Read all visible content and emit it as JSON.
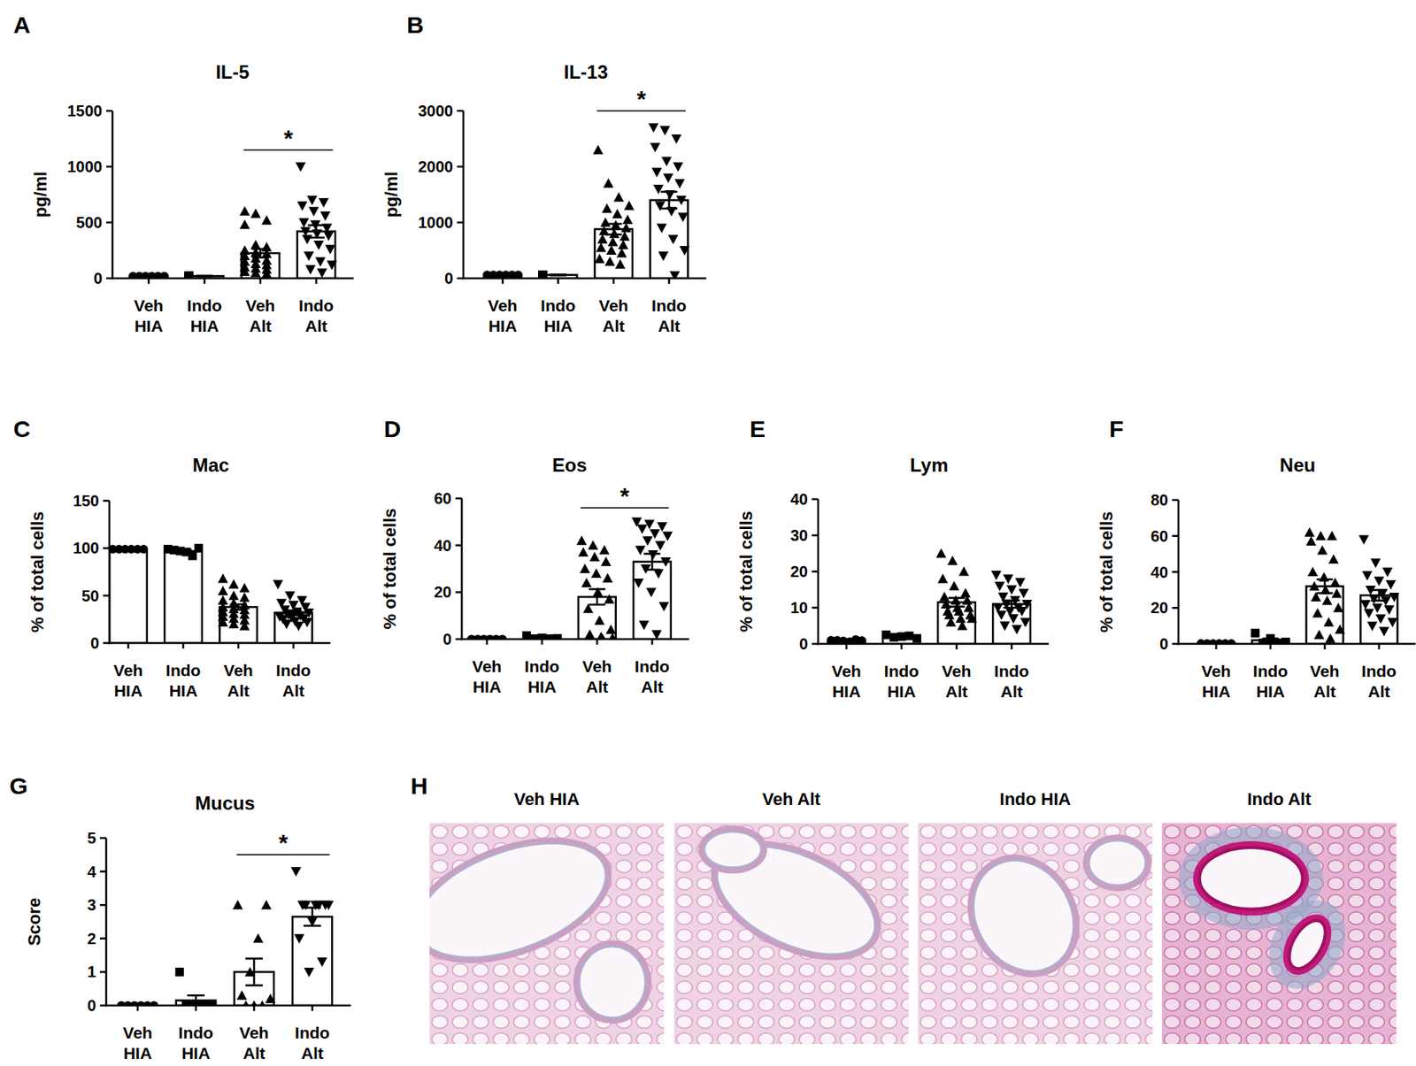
{
  "figure": {
    "panel_labels": [
      "A",
      "B",
      "C",
      "D",
      "E",
      "F",
      "G",
      "H"
    ],
    "image_titles": [
      "Veh HIA",
      "Veh Alt",
      "Indo HIA",
      "Indo Alt"
    ]
  },
  "chart_data": [
    {
      "type": "bar",
      "title": "IL-5",
      "ylabel": "pg/ml",
      "categories": [
        "Veh HIA",
        "Indo HIA",
        "Veh Alt",
        "Indo Alt"
      ],
      "ylim": [
        0,
        1500
      ],
      "yticks": [
        0,
        500,
        1000,
        1500
      ],
      "markers": [
        "circle",
        "square",
        "triangle-up",
        "triangle-down"
      ],
      "annotations": [
        {
          "text": "*",
          "between": [
            "Veh Alt",
            "Indo Alt"
          ]
        }
      ],
      "series": [
        {
          "color": "#ffffff",
          "values": [
            20,
            20,
            225,
            420
          ],
          "errors": [
            3,
            3,
            38,
            55
          ],
          "points": [
            [
              20,
              20,
              20,
              20,
              20,
              20
            ],
            [
              20,
              20,
              20,
              20,
              20,
              20,
              20
            ],
            [
              600,
              580,
              520,
              480,
              300,
              280,
              250,
              230,
              220,
              200,
              180,
              160,
              150,
              130,
              120,
              100,
              90,
              80,
              60,
              50,
              40
            ],
            [
              1000,
              700,
              680,
              650,
              600,
              560,
              500,
              480,
              450,
              420,
              400,
              380,
              350,
              300,
              260,
              200,
              150,
              120,
              80,
              50
            ]
          ]
        }
      ]
    },
    {
      "type": "bar",
      "title": "IL-13",
      "ylabel": "pg/ml",
      "categories": [
        "Veh HIA",
        "Indo HIA",
        "Veh Alt",
        "Indo Alt"
      ],
      "ylim": [
        0,
        3000
      ],
      "yticks": [
        0,
        1000,
        2000,
        3000
      ],
      "markers": [
        "circle",
        "square",
        "triangle-up",
        "triangle-down"
      ],
      "annotations": [
        {
          "text": "*",
          "between": [
            "Veh Alt",
            "Indo Alt"
          ]
        }
      ],
      "series": [
        {
          "color": "#ffffff",
          "values": [
            60,
            60,
            880,
            1400
          ],
          "errors": [
            8,
            8,
            95,
            150
          ],
          "points": [
            [
              60,
              60,
              60,
              60,
              60,
              60
            ],
            [
              60,
              60,
              60,
              60,
              60,
              60,
              60
            ],
            [
              2300,
              1700,
              1450,
              1300,
              1250,
              1150,
              1050,
              1000,
              950,
              900,
              850,
              800,
              750,
              700,
              650,
              600,
              550,
              500,
              450,
              350,
              300,
              250
            ],
            [
              2700,
              2650,
              2500,
              2350,
              2100,
              2000,
              1900,
              1800,
              1700,
              1600,
              1500,
              1400,
              1300,
              1200,
              1100,
              900,
              700,
              500,
              400,
              50
            ]
          ]
        }
      ]
    },
    {
      "type": "bar",
      "title": "Mac",
      "ylabel": "% of total cells",
      "categories": [
        "Veh HIA",
        "Indo HIA",
        "Veh Alt",
        "Indo Alt"
      ],
      "ylim": [
        0,
        150
      ],
      "yticks": [
        0,
        50,
        100,
        150
      ],
      "markers": [
        "circle",
        "square",
        "triangle-up",
        "triangle-down"
      ],
      "series": [
        {
          "color": "#ffffff",
          "values": [
            99,
            97,
            38,
            32
          ],
          "errors": [
            0.3,
            1.5,
            2.8,
            2.4
          ],
          "points": [
            [
              99,
              99,
              99,
              99,
              99,
              99
            ],
            [
              99,
              98,
              97,
              96,
              92,
              100
            ],
            [
              68,
              62,
              58,
              55,
              50,
              48,
              45,
              42,
              40,
              38,
              36,
              35,
              33,
              31,
              30,
              28,
              26,
              24,
              22,
              20,
              18
            ],
            [
              62,
              50,
              45,
              42,
              40,
              38,
              35,
              33,
              32,
              30,
              29,
              28,
              27,
              26,
              25,
              23,
              22,
              20,
              18
            ]
          ]
        }
      ]
    },
    {
      "type": "bar",
      "title": "Eos",
      "ylabel": "% of total cells",
      "categories": [
        "Veh HIA",
        "Indo HIA",
        "Veh Alt",
        "Indo Alt"
      ],
      "ylim": [
        0,
        60
      ],
      "yticks": [
        0,
        20,
        40,
        60
      ],
      "markers": [
        "circle",
        "square",
        "triangle-up",
        "triangle-down"
      ],
      "annotations": [
        {
          "text": "*",
          "between": [
            "Veh Alt",
            "Indo Alt"
          ]
        }
      ],
      "series": [
        {
          "color": "#ffffff",
          "values": [
            0,
            0.5,
            18,
            33
          ],
          "errors": [
            0,
            0.3,
            3.3,
            3.4
          ],
          "points": [
            [
              0,
              0,
              0,
              0,
              0,
              0
            ],
            [
              1.5,
              0.5,
              0.3,
              0.2,
              0.2
            ],
            [
              42,
              40,
              38,
              37,
              35,
              33,
              30,
              28,
              26,
              24,
              20,
              17,
              13,
              8,
              4,
              2,
              1,
              0.5,
              0,
              0
            ],
            [
              50,
              49,
              48,
              47,
              45,
              44,
              42,
              40,
              38,
              36,
              33,
              30,
              28,
              24,
              20,
              14,
              6,
              2
            ]
          ]
        }
      ]
    },
    {
      "type": "bar",
      "title": "Lym",
      "ylabel": "% of total cells",
      "categories": [
        "Veh HIA",
        "Indo HIA",
        "Veh Alt",
        "Indo Alt"
      ],
      "ylim": [
        0,
        40
      ],
      "yticks": [
        0,
        10,
        20,
        30,
        40
      ],
      "markers": [
        "circle",
        "square",
        "triangle-up",
        "triangle-down"
      ],
      "series": [
        {
          "color": "#ffffff",
          "values": [
            1,
            2,
            11.5,
            11
          ],
          "errors": [
            0.2,
            0.5,
            1.2,
            1
          ],
          "points": [
            [
              1,
              1,
              0.8,
              0.6,
              1.2,
              0.9
            ],
            [
              2.5,
              2,
              1.5,
              1.8,
              2.2
            ],
            [
              25,
              23,
              20,
              18,
              16,
              14,
              13,
              12,
              12,
              11,
              10,
              10,
              9,
              9,
              8,
              8,
              7,
              7,
              6,
              5
            ],
            [
              19,
              18,
              17,
              16,
              15,
              14,
              13,
              12,
              11,
              11,
              10,
              10,
              9,
              9,
              8,
              7,
              6,
              5,
              4
            ]
          ]
        }
      ]
    },
    {
      "type": "bar",
      "title": "Neu",
      "ylabel": "% of total cells",
      "categories": [
        "Veh HIA",
        "Indo HIA",
        "Veh Alt",
        "Indo Alt"
      ],
      "ylim": [
        0,
        80
      ],
      "yticks": [
        0,
        20,
        40,
        60,
        80
      ],
      "markers": [
        "circle",
        "square",
        "triangle-up",
        "triangle-down"
      ],
      "series": [
        {
          "color": "#ffffff",
          "values": [
            0.3,
            2,
            32,
            27
          ],
          "errors": [
            0,
            1,
            3.8,
            3
          ],
          "points": [
            [
              0.2,
              0.2,
              0.2,
              0.2,
              0.2,
              0.2
            ],
            [
              6,
              3,
              1,
              0.5,
              0.5
            ],
            [
              62,
              60,
              60,
              57,
              52,
              47,
              40,
              37,
              34,
              32,
              30,
              28,
              26,
              24,
              20,
              17,
              12,
              8,
              5,
              3
            ],
            [
              58,
              45,
              40,
              38,
              35,
              33,
              30,
              28,
              26,
              25,
              24,
              22,
              20,
              19,
              17,
              14,
              12,
              10,
              7
            ]
          ]
        }
      ]
    },
    {
      "type": "bar",
      "title": "Mucus",
      "ylabel": "Score",
      "categories": [
        "Veh HIA",
        "Indo HIA",
        "Veh Alt",
        "Indo Alt"
      ],
      "ylim": [
        0,
        5
      ],
      "yticks": [
        0,
        1,
        2,
        3,
        4,
        5
      ],
      "markers": [
        "circle",
        "square",
        "triangle-up",
        "triangle-down"
      ],
      "annotations": [
        {
          "text": "*",
          "between": [
            "Veh Alt",
            "Indo Alt"
          ]
        }
      ],
      "series": [
        {
          "color": "#ffffff",
          "values": [
            0,
            0.15,
            1,
            2.65
          ],
          "errors": [
            0,
            0.15,
            0.4,
            0.27
          ],
          "points": [
            [
              0,
              0,
              0,
              0,
              0,
              0
            ],
            [
              1,
              0,
              0,
              0,
              0,
              0
            ],
            [
              3,
              3,
              2,
              1,
              0.3,
              0.2,
              0,
              0,
              0
            ],
            [
              4,
              3,
              3,
              3,
              3,
              3,
              3,
              2.5,
              2,
              1.3,
              1
            ]
          ]
        }
      ]
    }
  ]
}
